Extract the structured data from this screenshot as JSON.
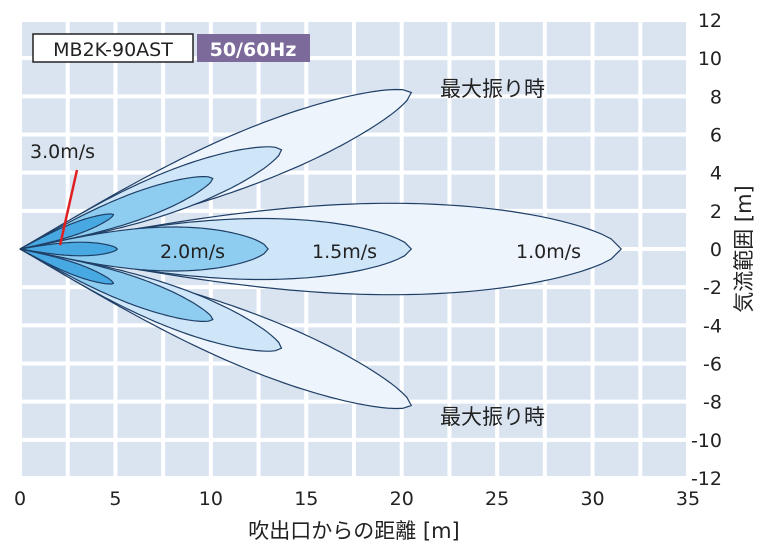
{
  "labels": {
    "model": "MB2K-90AST",
    "frequency": "50/60Hz",
    "max_swing_upper": "最大振り時",
    "max_swing_lower": "最大振り時",
    "speed_3": "3.0m/s",
    "speed_2": "2.0m/s",
    "speed_15": "1.5m/s",
    "speed_1": "1.0m/s"
  },
  "colors": {
    "plot_bg": "#dae4f1",
    "grid": "#ffffff",
    "contour_1_0": "#eef4fc",
    "contour_1_5": "#cfe6f8",
    "contour_2_0": "#8fcdf0",
    "contour_3_0": "#48a9e2",
    "stroke": "#1f3f66",
    "pointer": "#e02020",
    "freq_badge": "#7b6a9a"
  },
  "chart_data": {
    "type": "area",
    "title": "",
    "xlabel": "吹出口からの距離 [m]",
    "ylabel": "気流範囲 [m]",
    "xlim": [
      0,
      35
    ],
    "ylim": [
      -12,
      12
    ],
    "xticks": [
      0,
      5,
      10,
      15,
      20,
      25,
      30,
      35
    ],
    "xtick_labels": [
      "0",
      "5",
      "10",
      "15",
      "20",
      "25",
      "30",
      "35"
    ],
    "yticks": [
      12,
      10,
      8,
      6,
      4,
      2,
      0,
      -2,
      -4,
      -6,
      -8,
      -10,
      -12
    ],
    "ytick_labels": [
      "12",
      "10",
      "8",
      "6",
      "4",
      "2",
      "0",
      "-2",
      "-4",
      "-6",
      "-8",
      "-10",
      "-12"
    ],
    "grid": true,
    "series": [
      {
        "name": "1.0m/s",
        "direction": "straight",
        "reach": 31.5,
        "half_width": 2.7
      },
      {
        "name": "1.5m/s",
        "direction": "straight",
        "reach": 20.5,
        "half_width": 1.8
      },
      {
        "name": "2.0m/s",
        "direction": "straight",
        "reach": 13.0,
        "half_width": 1.3
      },
      {
        "name": "3.0m/s",
        "direction": "straight",
        "reach": 5.1,
        "half_width": 0.4
      },
      {
        "name": "1.0m/s max swing up",
        "direction": "up",
        "tip": [
          20.5,
          8.2
        ],
        "half_width": 1.6
      },
      {
        "name": "1.5m/s max swing up",
        "direction": "up",
        "tip": [
          13.7,
          5.2
        ],
        "half_width": 1.2
      },
      {
        "name": "2.0m/s max swing up",
        "direction": "up",
        "tip": [
          10.1,
          3.7
        ],
        "half_width": 0.8
      },
      {
        "name": "3.0m/s max swing up",
        "direction": "up",
        "tip": [
          4.9,
          1.8
        ],
        "half_width": 0.35
      },
      {
        "name": "1.0m/s max swing down",
        "direction": "down",
        "tip": [
          20.5,
          -8.2
        ],
        "half_width": 1.6
      },
      {
        "name": "1.5m/s max swing down",
        "direction": "down",
        "tip": [
          13.7,
          -5.2
        ],
        "half_width": 1.2
      },
      {
        "name": "2.0m/s max swing down",
        "direction": "down",
        "tip": [
          10.1,
          -3.7
        ],
        "half_width": 0.8
      },
      {
        "name": "3.0m/s max swing down",
        "direction": "down",
        "tip": [
          4.9,
          -1.8
        ],
        "half_width": 0.35
      }
    ],
    "annotations": [
      {
        "text": "3.0m/s",
        "points_to": [
          2.1,
          0.2
        ]
      },
      {
        "text": "最大振り時",
        "near": [
          22,
          8.7
        ]
      },
      {
        "text": "最大振り時",
        "near": [
          22,
          -8.5
        ]
      }
    ]
  }
}
